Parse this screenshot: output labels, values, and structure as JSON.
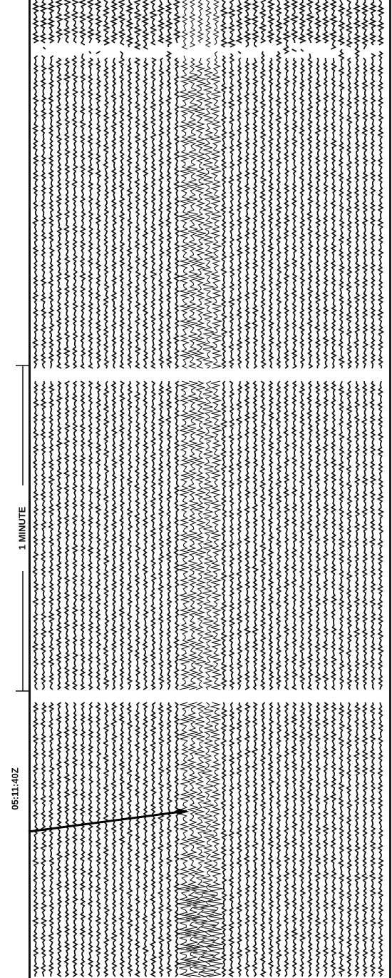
{
  "labels": {
    "scale": "1 MINUTE",
    "event_time": "05:11:40Z"
  }
}
